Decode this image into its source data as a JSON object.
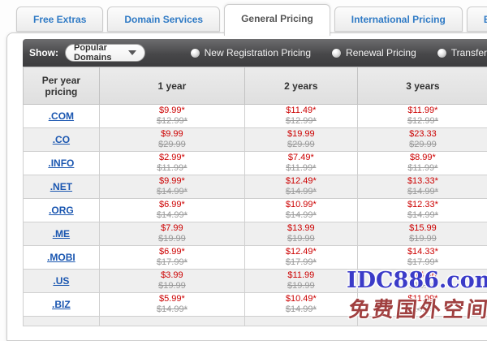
{
  "tabs": [
    {
      "label": "Free Extras",
      "active": false
    },
    {
      "label": "Domain Services",
      "active": false
    },
    {
      "label": "General Pricing",
      "active": true
    },
    {
      "label": "International Pricing",
      "active": false
    },
    {
      "label": "Bulk Pricing",
      "active": false
    }
  ],
  "toolbar": {
    "show_label": "Show:",
    "dropdown_value": "Popular Domains",
    "radios": [
      {
        "label": "New Registration Pricing",
        "selected": true
      },
      {
        "label": "Renewal Pricing",
        "selected": false
      },
      {
        "label": "Transfer Pricing",
        "selected": false
      }
    ]
  },
  "table": {
    "header": {
      "col0": "Per year pricing",
      "col1": "1 year",
      "col2": "2 years",
      "col3": "3 years"
    },
    "rows": [
      {
        "tld": ".COM",
        "y1": {
          "price": "$9.99*",
          "old": "$12.99*"
        },
        "y2": {
          "price": "$11.49*",
          "old": "$12.99*"
        },
        "y3": {
          "price": "$11.99*",
          "old": "$12.99*"
        }
      },
      {
        "tld": ".CO",
        "y1": {
          "price": "$9.99",
          "old": "$29.99"
        },
        "y2": {
          "price": "$19.99",
          "old": "$29.99"
        },
        "y3": {
          "price": "$23.33",
          "old": "$29.99"
        }
      },
      {
        "tld": ".INFO",
        "y1": {
          "price": "$2.99*",
          "old": "$11.99*"
        },
        "y2": {
          "price": "$7.49*",
          "old": "$11.99*"
        },
        "y3": {
          "price": "$8.99*",
          "old": "$11.99*"
        }
      },
      {
        "tld": ".NET",
        "y1": {
          "price": "$9.99*",
          "old": "$14.99*"
        },
        "y2": {
          "price": "$12.49*",
          "old": "$14.99*"
        },
        "y3": {
          "price": "$13.33*",
          "old": "$14.99*"
        }
      },
      {
        "tld": ".ORG",
        "y1": {
          "price": "$6.99*",
          "old": "$14.99*"
        },
        "y2": {
          "price": "$10.99*",
          "old": "$14.99*"
        },
        "y3": {
          "price": "$12.33*",
          "old": "$14.99*"
        }
      },
      {
        "tld": ".ME",
        "y1": {
          "price": "$7.99",
          "old": "$19.99"
        },
        "y2": {
          "price": "$13.99",
          "old": "$19.99"
        },
        "y3": {
          "price": "$15.99",
          "old": "$19.99"
        }
      },
      {
        "tld": ".MOBI",
        "y1": {
          "price": "$6.99*",
          "old": "$17.99*"
        },
        "y2": {
          "price": "$12.49*",
          "old": "$17.99*"
        },
        "y3": {
          "price": "$14.33*",
          "old": "$17.99*"
        }
      },
      {
        "tld": ".US",
        "y1": {
          "price": "$3.99",
          "old": "$19.99"
        },
        "y2": {
          "price": "$11.99",
          "old": "$19.99"
        },
        "y3": {
          "price": "$14.66",
          "old": "$19.99"
        }
      },
      {
        "tld": ".BIZ",
        "y1": {
          "price": "$5.99*",
          "old": "$14.99*"
        },
        "y2": {
          "price": "$10.49*",
          "old": "$14.99*"
        },
        "y3": {
          "price": "$11.99*",
          "old": "$14.99*"
        }
      }
    ]
  },
  "watermark": {
    "line1": "IDC886.com",
    "line2": "免费国外空间"
  },
  "colors": {
    "price_red": "#cc0000",
    "strike_gray": "#999999",
    "link_blue": "#1a56b0",
    "tab_blue": "#2f7ac5",
    "toolbar_dark": "#474749"
  }
}
